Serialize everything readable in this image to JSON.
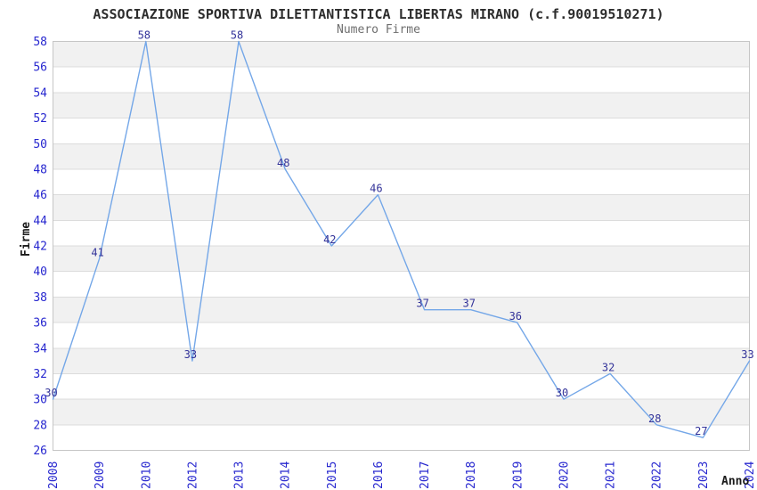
{
  "title": "ASSOCIAZIONE SPORTIVA DILETTANTISTICA LIBERTAS MIRANO (c.f.90019510271)",
  "subtitle": "Numero Firme",
  "chart_data": {
    "type": "line",
    "title": "ASSOCIAZIONE SPORTIVA DILETTANTISTICA LIBERTAS MIRANO (c.f.90019510271)",
    "subtitle": "Numero Firme",
    "xlabel": "Anno",
    "ylabel": "Firme",
    "categories": [
      "2008",
      "2009",
      "2010",
      "2012",
      "2013",
      "2014",
      "2015",
      "2016",
      "2017",
      "2018",
      "2019",
      "2020",
      "2021",
      "2022",
      "2023",
      "2024"
    ],
    "values": [
      30,
      41,
      58,
      33,
      58,
      48,
      42,
      46,
      37,
      37,
      36,
      30,
      32,
      28,
      27,
      33
    ],
    "ylim": [
      26,
      58
    ],
    "ytick_step": 2,
    "yticks": [
      26,
      28,
      30,
      32,
      34,
      36,
      38,
      40,
      42,
      44,
      46,
      48,
      50,
      52,
      54,
      56,
      58
    ],
    "grid": true,
    "alternating_bands": true,
    "point_markers": false,
    "data_labels": true,
    "legend_position": "none",
    "x_tick_rotation_deg": -90
  },
  "colors": {
    "line": "#74a7e8",
    "data_label": "#333399",
    "axis_tick_label": "#2727cf",
    "band_gray": "#f1f1f1",
    "grid_line": "#dcdcdc",
    "plot_border": "#c6c6c6",
    "title_text": "#2d2d2d",
    "subtitle_text": "#6e6e6e",
    "axis_title_text": "#1a1a1a",
    "background": "#ffffff"
  }
}
